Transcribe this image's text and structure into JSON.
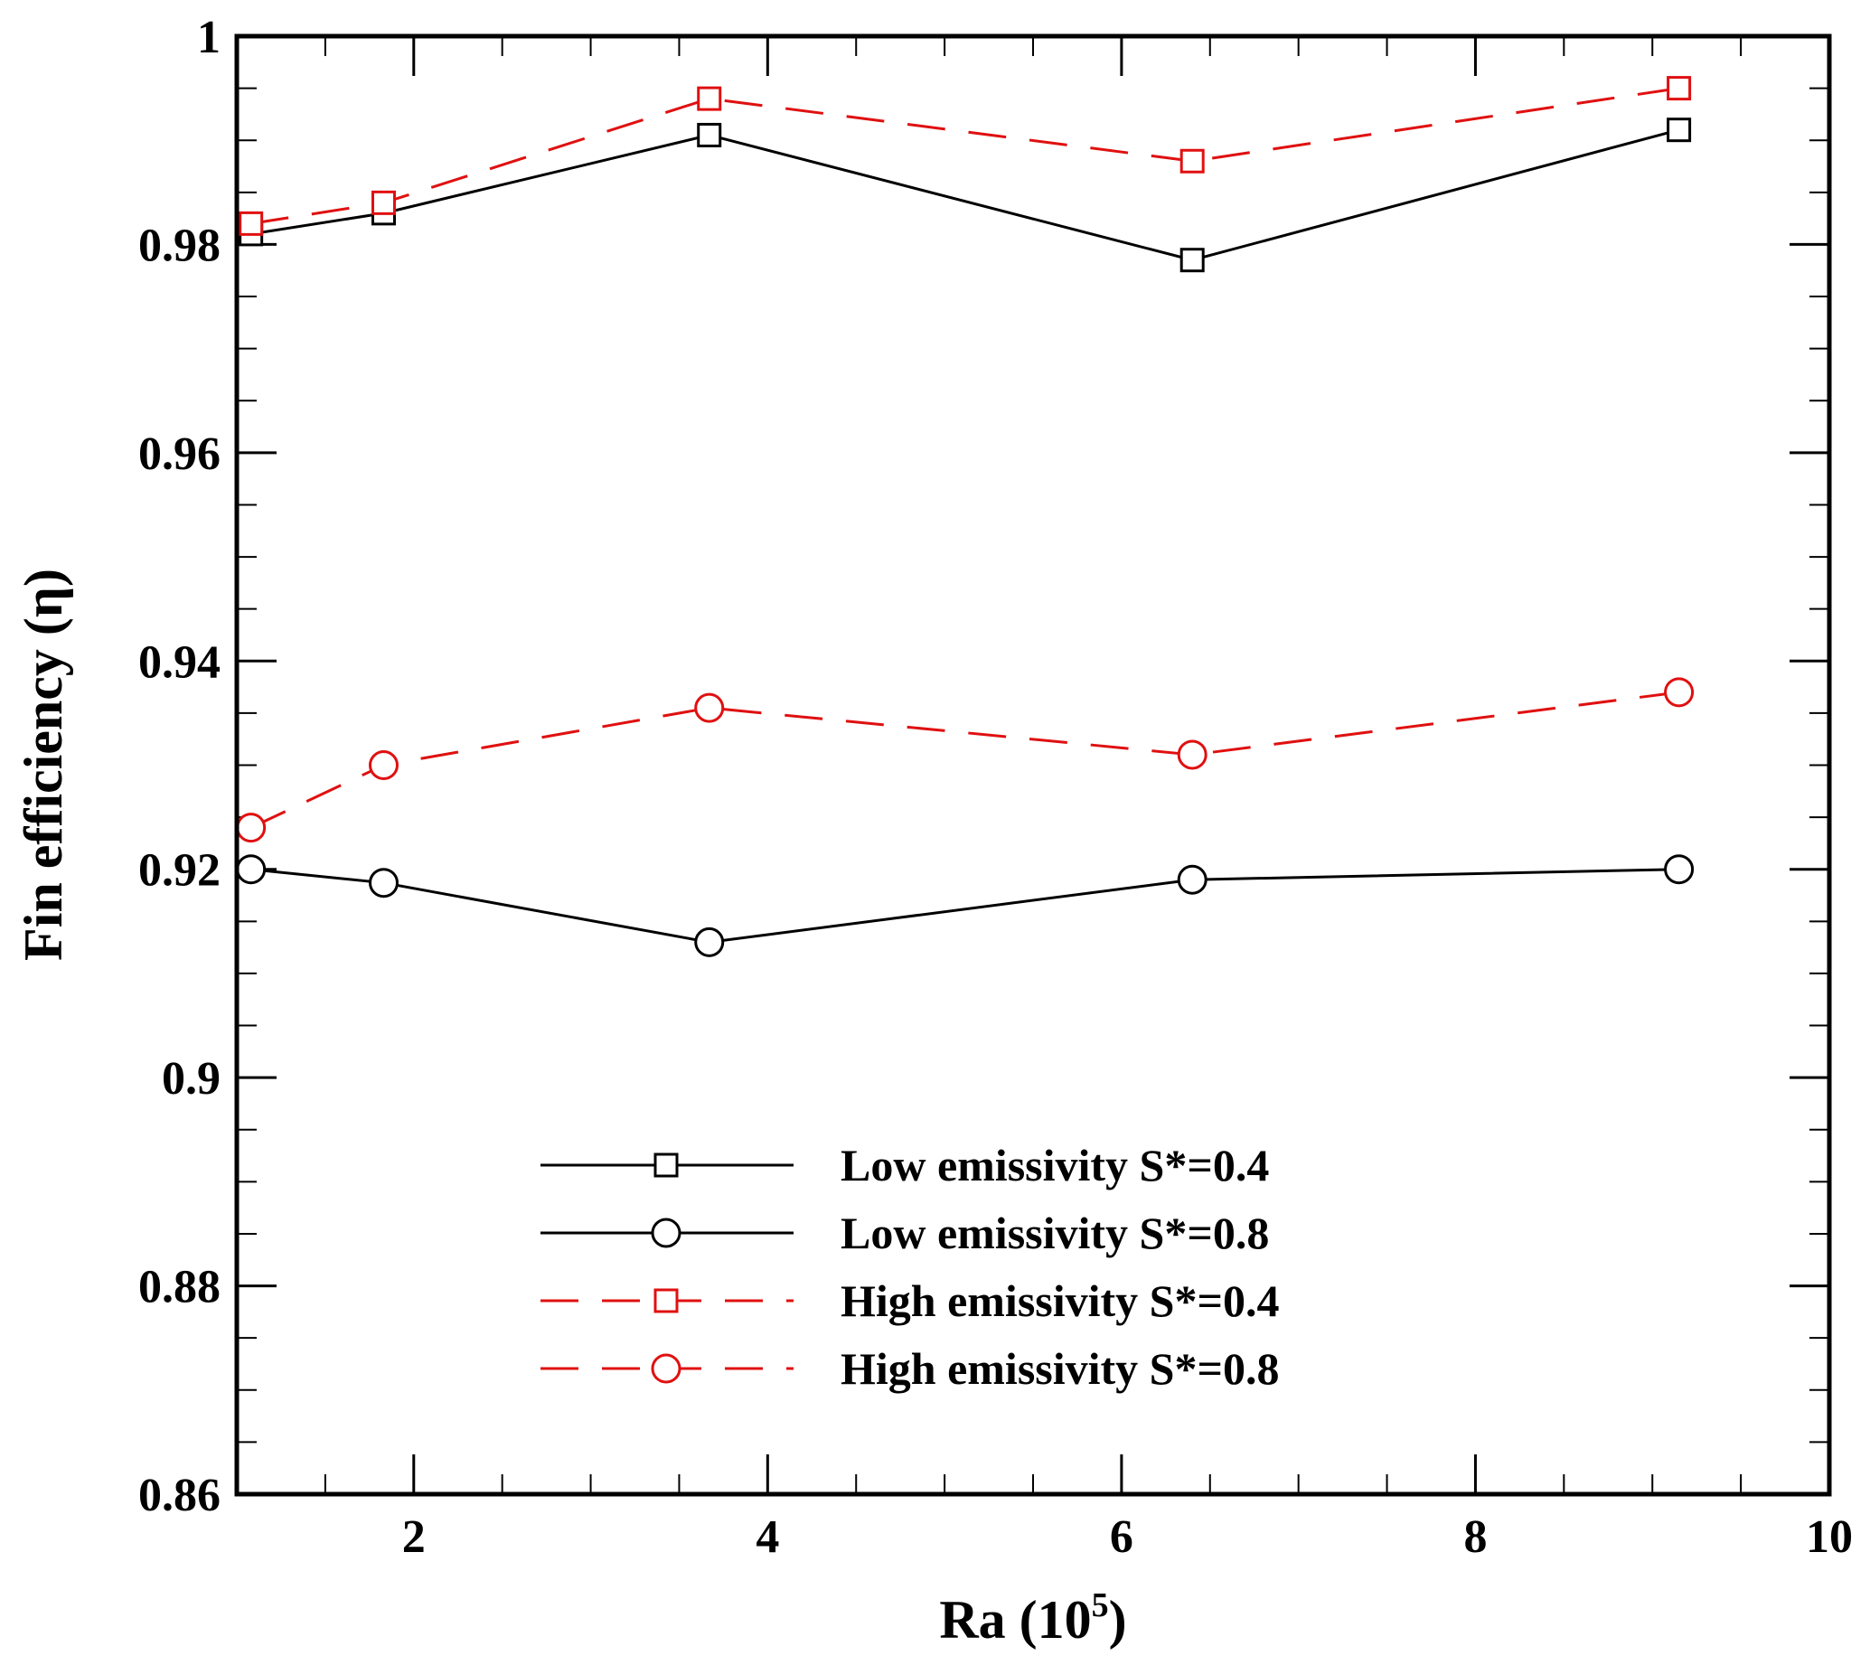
{
  "chart_data": {
    "type": "line",
    "xlabel": "Ra (10",
    "xlabel_sup": "5",
    "xlabel_close": ")",
    "ylabel": "Fin efficiency (η)",
    "xlim": [
      1,
      10
    ],
    "ylim": [
      0.86,
      1.0
    ],
    "x_ticks": [
      2,
      4,
      6,
      8,
      10
    ],
    "x_tick_labels": [
      "2",
      "4",
      "6",
      "8",
      "10"
    ],
    "y_ticks": [
      0.86,
      0.88,
      0.9,
      0.92,
      0.94,
      0.96,
      0.98,
      1.0
    ],
    "y_tick_labels": [
      "0.86",
      "0.88",
      "0.9",
      "0.92",
      "0.94",
      "0.96",
      "0.98",
      "1"
    ],
    "grid": false,
    "legend_position": "bottom-center",
    "x": [
      1.08,
      1.83,
      3.67,
      6.4,
      9.15
    ],
    "series": [
      {
        "name": "Low emissivity S*=0.4",
        "values": [
          0.981,
          0.983,
          0.9905,
          0.9785,
          0.991
        ],
        "color": "#000000",
        "marker": "square",
        "dash": "solid"
      },
      {
        "name": "Low emissivity S*=0.8",
        "values": [
          0.92,
          0.9187,
          0.913,
          0.919,
          0.92
        ],
        "color": "#000000",
        "marker": "circle",
        "dash": "solid"
      },
      {
        "name": "High emissivity S*=0.4",
        "values": [
          0.982,
          0.984,
          0.994,
          0.988,
          0.995
        ],
        "color": "#e01010",
        "marker": "square",
        "dash": "dashed"
      },
      {
        "name": "High emissivity S*=0.8",
        "values": [
          0.924,
          0.93,
          0.9355,
          0.931,
          0.937
        ],
        "color": "#e01010",
        "marker": "circle",
        "dash": "dashed"
      }
    ]
  }
}
